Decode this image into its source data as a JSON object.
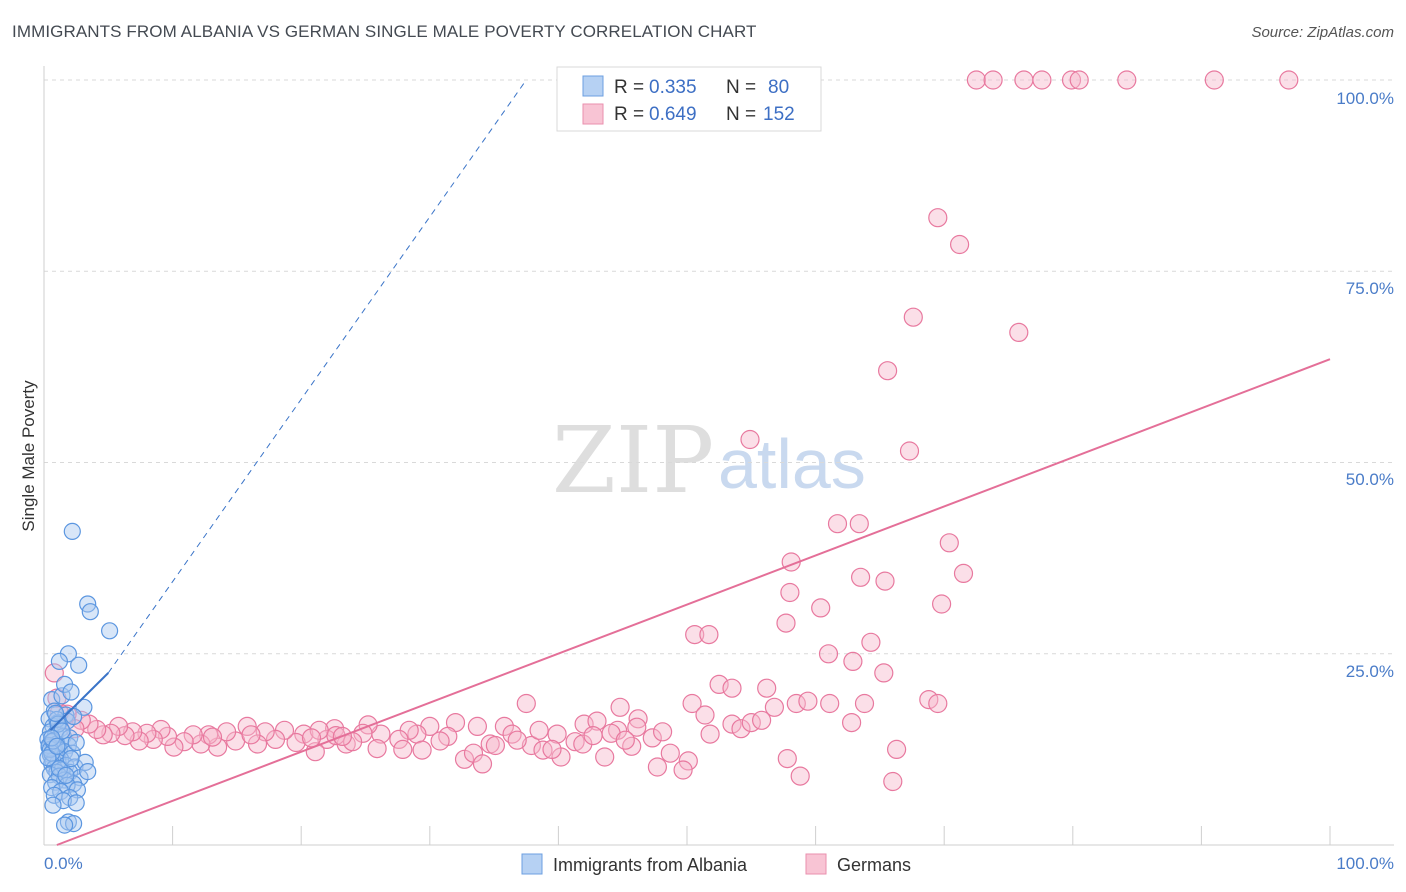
{
  "header": {
    "title": "IMMIGRANTS FROM ALBANIA VS GERMAN SINGLE MALE POVERTY CORRELATION CHART",
    "source": "Source: ZipAtlas.com"
  },
  "watermark": {
    "zip": "ZIP",
    "atlas": "atlas"
  },
  "colors": {
    "blue": "#5b96e0",
    "blue_fill": "#a9c8f0",
    "blue_line": "#3a74c8",
    "pink": "#e8799f",
    "pink_fill": "#f6b8cb",
    "pink_line": "#e46f98",
    "grid": "#d9d9d9",
    "axis_text": "#4a7cc8"
  },
  "legend": {
    "rows": [
      {
        "r_label": "R =",
        "r_value": "0.335",
        "n_label": "N =",
        "n_value": "80"
      },
      {
        "r_label": "R =",
        "r_value": "0.649",
        "n_label": "N =",
        "n_value": "152"
      }
    ]
  },
  "bottom_legend": {
    "items": [
      {
        "label": "Immigrants from Albania"
      },
      {
        "label": "Germans"
      }
    ]
  },
  "chart_data": {
    "type": "scatter",
    "title": "IMMIGRANTS FROM ALBANIA VS GERMAN SINGLE MALE POVERTY CORRELATION CHART",
    "xlabel": "",
    "ylabel": "Single Male Poverty",
    "xlim": [
      0,
      100
    ],
    "ylim": [
      0,
      100
    ],
    "x_tick_labels": [
      "0.0%",
      "100.0%"
    ],
    "y_tick_labels": [
      "25.0%",
      "50.0%",
      "75.0%",
      "100.0%"
    ],
    "y_ticks": [
      25,
      50,
      75,
      100
    ],
    "series": [
      {
        "name": "Immigrants from Albania",
        "R": 0.335,
        "N": 80,
        "trend": {
          "x0": 0.5,
          "y0": 15.0,
          "x1": 5.0,
          "y1": 22.5,
          "extend_to_x": 37.5,
          "extend_to_y": 100
        },
        "points": [
          [
            2.2,
            41
          ],
          [
            3.4,
            31.5
          ],
          [
            3.6,
            30.5
          ],
          [
            5.1,
            28
          ],
          [
            1.9,
            25
          ],
          [
            1.2,
            24
          ],
          [
            2.7,
            23.5
          ],
          [
            0.6,
            19
          ],
          [
            1.4,
            19.5
          ],
          [
            1.6,
            21
          ],
          [
            2.1,
            20
          ],
          [
            3.1,
            18
          ],
          [
            0.8,
            17.5
          ],
          [
            1.7,
            17
          ],
          [
            0.4,
            16.5
          ],
          [
            1.1,
            16
          ],
          [
            1.8,
            16.2
          ],
          [
            2.3,
            16.8
          ],
          [
            0.7,
            15.5
          ],
          [
            1.3,
            15.2
          ],
          [
            0.5,
            14.8
          ],
          [
            0.9,
            14.5
          ],
          [
            1.5,
            14.2
          ],
          [
            2.0,
            14
          ],
          [
            0.3,
            13.8
          ],
          [
            0.6,
            13.5
          ],
          [
            1.0,
            13.2
          ],
          [
            1.9,
            13
          ],
          [
            0.4,
            12.8
          ],
          [
            0.8,
            12.6
          ],
          [
            1.2,
            12.4
          ],
          [
            1.6,
            12.2
          ],
          [
            2.2,
            12
          ],
          [
            0.5,
            11.8
          ],
          [
            0.9,
            11.5
          ],
          [
            1.3,
            11.2
          ],
          [
            0.7,
            11
          ],
          [
            1.1,
            10.8
          ],
          [
            0.6,
            10.6
          ],
          [
            1.7,
            10.4
          ],
          [
            2.4,
            10.2
          ],
          [
            0.8,
            10
          ],
          [
            1.4,
            9.8
          ],
          [
            3.2,
            10.8
          ],
          [
            1.0,
            9.5
          ],
          [
            2.0,
            9.5
          ],
          [
            0.5,
            9.2
          ],
          [
            1.2,
            9
          ],
          [
            2.8,
            8.8
          ],
          [
            3.4,
            9.6
          ],
          [
            1.6,
            8.5
          ],
          [
            0.9,
            8.2
          ],
          [
            2.3,
            8
          ],
          [
            1.8,
            7.8
          ],
          [
            0.6,
            7.5
          ],
          [
            2.6,
            7.2
          ],
          [
            1.3,
            7
          ],
          [
            0.8,
            6.5
          ],
          [
            2.0,
            6.2
          ],
          [
            1.5,
            5.8
          ],
          [
            2.5,
            5.5
          ],
          [
            0.7,
            5.2
          ],
          [
            1.9,
            3
          ],
          [
            2.3,
            2.8
          ],
          [
            1.6,
            2.6
          ],
          [
            0.4,
            13
          ],
          [
            0.5,
            12.5
          ],
          [
            0.6,
            12
          ],
          [
            0.7,
            13.6
          ],
          [
            0.3,
            11.4
          ],
          [
            1.0,
            16.4
          ],
          [
            1.1,
            15.8
          ],
          [
            0.9,
            17.2
          ],
          [
            2.5,
            13.4
          ],
          [
            1.4,
            14.9
          ],
          [
            0.6,
            14
          ],
          [
            1.2,
            10
          ],
          [
            2.1,
            11.3
          ],
          [
            1.7,
            9.1
          ],
          [
            1.0,
            12.9
          ]
        ]
      },
      {
        "name": "Germans",
        "R": 0.649,
        "N": 152,
        "trend": {
          "x0": 1.0,
          "y0": 0.0,
          "x1": 100.0,
          "y1": 63.5
        },
        "points": [
          [
            72.5,
            100
          ],
          [
            73.8,
            100
          ],
          [
            76.2,
            100
          ],
          [
            77.6,
            100
          ],
          [
            79.9,
            100
          ],
          [
            80.5,
            100
          ],
          [
            84.2,
            100
          ],
          [
            91.0,
            100
          ],
          [
            96.8,
            100
          ],
          [
            69.5,
            82
          ],
          [
            71.2,
            78.5
          ],
          [
            67.6,
            69
          ],
          [
            75.8,
            67
          ],
          [
            65.6,
            62
          ],
          [
            67.3,
            51.5
          ],
          [
            54.9,
            53
          ],
          [
            61.7,
            42
          ],
          [
            63.4,
            42
          ],
          [
            70.4,
            39.5
          ],
          [
            58.1,
            37
          ],
          [
            71.5,
            35.5
          ],
          [
            63.5,
            35
          ],
          [
            65.4,
            34.5
          ],
          [
            58.0,
            33
          ],
          [
            60.4,
            31
          ],
          [
            69.8,
            31.5
          ],
          [
            50.6,
            27.5
          ],
          [
            51.7,
            27.5
          ],
          [
            57.7,
            29
          ],
          [
            64.3,
            26.5
          ],
          [
            61.0,
            25
          ],
          [
            62.9,
            24
          ],
          [
            65.3,
            22.5
          ],
          [
            52.5,
            21
          ],
          [
            53.5,
            20.5
          ],
          [
            56.2,
            20.5
          ],
          [
            50.4,
            18.5
          ],
          [
            58.5,
            18.5
          ],
          [
            59.4,
            18.8
          ],
          [
            61.1,
            18.5
          ],
          [
            63.8,
            18.5
          ],
          [
            68.8,
            19
          ],
          [
            69.5,
            18.5
          ],
          [
            56.8,
            18
          ],
          [
            51.4,
            17
          ],
          [
            37.5,
            18.5
          ],
          [
            44.8,
            18
          ],
          [
            46.2,
            16.5
          ],
          [
            53.5,
            15.8
          ],
          [
            54.2,
            15.2
          ],
          [
            55.0,
            16
          ],
          [
            55.8,
            16.3
          ],
          [
            62.8,
            16
          ],
          [
            46.1,
            15.4
          ],
          [
            47.3,
            14
          ],
          [
            48.1,
            14.8
          ],
          [
            51.8,
            14.5
          ],
          [
            45.7,
            12.9
          ],
          [
            48.7,
            12
          ],
          [
            50.1,
            11
          ],
          [
            43.6,
            11.5
          ],
          [
            66.3,
            12.5
          ],
          [
            57.8,
            11.3
          ],
          [
            47.7,
            10.2
          ],
          [
            49.7,
            9.8
          ],
          [
            58.8,
            9
          ],
          [
            66.0,
            8.3
          ],
          [
            35.8,
            15.5
          ],
          [
            36.4,
            14.5
          ],
          [
            37.9,
            13
          ],
          [
            38.5,
            15
          ],
          [
            39.9,
            14.5
          ],
          [
            41.3,
            13.5
          ],
          [
            42.0,
            15.8
          ],
          [
            43.0,
            16.2
          ],
          [
            44.6,
            15
          ],
          [
            40.2,
            11.5
          ],
          [
            32.0,
            16
          ],
          [
            33.7,
            15.5
          ],
          [
            34.7,
            13.2
          ],
          [
            31.4,
            14.2
          ],
          [
            30.0,
            15.5
          ],
          [
            29.0,
            14.5
          ],
          [
            28.4,
            15
          ],
          [
            27.6,
            13.8
          ],
          [
            26.2,
            14.5
          ],
          [
            25.2,
            15.7
          ],
          [
            24.8,
            14.6
          ],
          [
            23.5,
            13.2
          ],
          [
            22.6,
            15.2
          ],
          [
            22.0,
            13.8
          ],
          [
            21.1,
            12.2
          ],
          [
            20.2,
            14.5
          ],
          [
            19.6,
            13.4
          ],
          [
            18.7,
            15
          ],
          [
            18.0,
            13.8
          ],
          [
            17.2,
            14.8
          ],
          [
            16.6,
            13.2
          ],
          [
            15.8,
            15.5
          ],
          [
            14.9,
            13.6
          ],
          [
            14.2,
            14.8
          ],
          [
            13.5,
            12.8
          ],
          [
            12.8,
            14.4
          ],
          [
            12.2,
            13.2
          ],
          [
            11.6,
            14.4
          ],
          [
            10.9,
            13.5
          ],
          [
            10.1,
            12.8
          ],
          [
            9.6,
            14.2
          ],
          [
            9.1,
            15.1
          ],
          [
            8.5,
            13.8
          ],
          [
            8.0,
            14.6
          ],
          [
            7.4,
            13.6
          ],
          [
            6.9,
            14.8
          ],
          [
            6.3,
            14.3
          ],
          [
            5.8,
            15.5
          ],
          [
            5.2,
            14.6
          ],
          [
            4.6,
            14.4
          ],
          [
            4.1,
            15.1
          ],
          [
            3.5,
            15.8
          ],
          [
            2.9,
            16.3
          ],
          [
            2.4,
            15.2
          ],
          [
            1.8,
            17.1
          ],
          [
            1.2,
            17.3
          ],
          [
            0.8,
            22.5
          ],
          [
            1.0,
            19.2
          ],
          [
            22.7,
            14.3
          ],
          [
            24.0,
            13.5
          ],
          [
            25.9,
            12.6
          ],
          [
            27.9,
            12.5
          ],
          [
            29.4,
            12.4
          ],
          [
            30.8,
            13.6
          ],
          [
            32.7,
            11.2
          ],
          [
            33.4,
            12
          ],
          [
            34.1,
            10.6
          ],
          [
            35.1,
            13
          ],
          [
            36.8,
            13.7
          ],
          [
            38.8,
            12.4
          ],
          [
            39.5,
            12.5
          ],
          [
            41.9,
            13.2
          ],
          [
            42.7,
            14.3
          ],
          [
            44.1,
            14.6
          ],
          [
            45.2,
            13.7
          ],
          [
            23.2,
            14.2
          ],
          [
            21.4,
            15
          ],
          [
            20.8,
            14
          ],
          [
            16.1,
            14.4
          ],
          [
            13.1,
            14.1
          ]
        ]
      }
    ]
  },
  "axes": {
    "ylabel": "Single Male Poverty",
    "x_left_label": "0.0%",
    "x_right_label": "100.0%",
    "y_labels": [
      "25.0%",
      "50.0%",
      "75.0%",
      "100.0%"
    ]
  }
}
